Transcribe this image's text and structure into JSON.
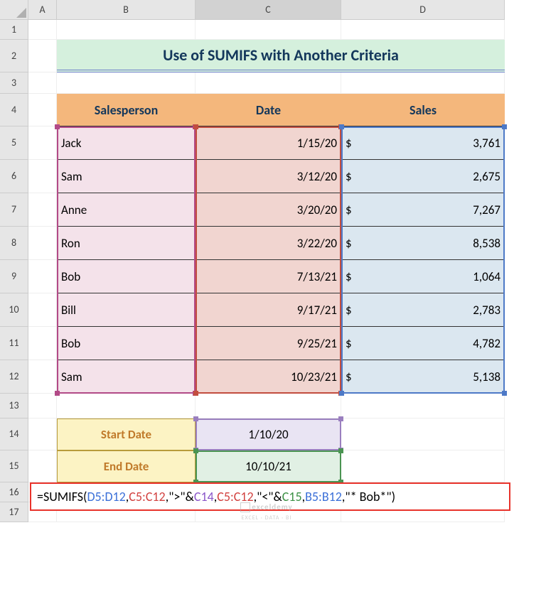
{
  "cols": [
    "A",
    "B",
    "C",
    "D"
  ],
  "rows": [
    "1",
    "2",
    "3",
    "4",
    "5",
    "6",
    "7",
    "8",
    "9",
    "10",
    "11",
    "12",
    "13",
    "14",
    "15",
    "16",
    "17"
  ],
  "title": "Use of SUMIFS with Another Criteria",
  "headers": {
    "b": "Salesperson",
    "c": "Date",
    "d": "Sales"
  },
  "data": [
    {
      "sp": "Jack",
      "dt": "1/15/20",
      "cur": "$",
      "sl": "3,761"
    },
    {
      "sp": "Sam",
      "dt": "3/12/20",
      "cur": "$",
      "sl": "2,675"
    },
    {
      "sp": "Anne",
      "dt": "3/20/20",
      "cur": "$",
      "sl": "7,267"
    },
    {
      "sp": "Ron",
      "dt": "3/22/20",
      "cur": "$",
      "sl": "8,538"
    },
    {
      "sp": "Bob",
      "dt": "7/13/21",
      "cur": "$",
      "sl": "1,064"
    },
    {
      "sp": "Bill",
      "dt": "9/17/21",
      "cur": "$",
      "sl": "2,783"
    },
    {
      "sp": "Bob",
      "dt": "9/25/21",
      "cur": "$",
      "sl": "4,782"
    },
    {
      "sp": "Sam",
      "dt": "10/23/21",
      "cur": "$",
      "sl": "5,138"
    }
  ],
  "dateLabels": {
    "start": "Start Date",
    "end": "End Date"
  },
  "dateVals": {
    "start": "1/10/20",
    "end": "10/10/21"
  },
  "formula": {
    "p0": "=SUMIFS(",
    "p1": "D5:D12",
    "c1": ",",
    "p2": "C5:C12",
    "c2": ",",
    "p3": "\">\"",
    "a1": "&",
    "p4": "C14",
    "c3": ",",
    "p5": "C5:C12",
    "c4": ",",
    "p6": "\"<\"",
    "a2": "&",
    "p7": "C15",
    "c5": ",",
    "p8": "B5:B12",
    "c6": ",",
    "p9": "\"* Bob*\"",
    "p10": ")"
  },
  "colors": {
    "ref1": "#3a6fd8",
    "ref2": "#d2413f",
    "ref3": "#8a56c9",
    "ref4": "#3c9145",
    "sel_sp": "#b24a87",
    "sel_dt": "#c24d3f",
    "sel_sl": "#4d79c7",
    "sel_c14": "#9a7fbf",
    "sel_c15": "#4a9452"
  },
  "watermark": {
    "brand": "exceldemy",
    "tag": "EXCEL · DATA · BI"
  },
  "rowHeights": {
    "1": 28,
    "2": 46,
    "3": 30,
    "4": 46,
    "5": 47,
    "6": 47,
    "7": 47,
    "8": 47,
    "9": 47,
    "10": 47,
    "11": 47,
    "12": 47,
    "13": 35,
    "14": 45,
    "15": 45,
    "16": 28,
    "17": 28
  }
}
